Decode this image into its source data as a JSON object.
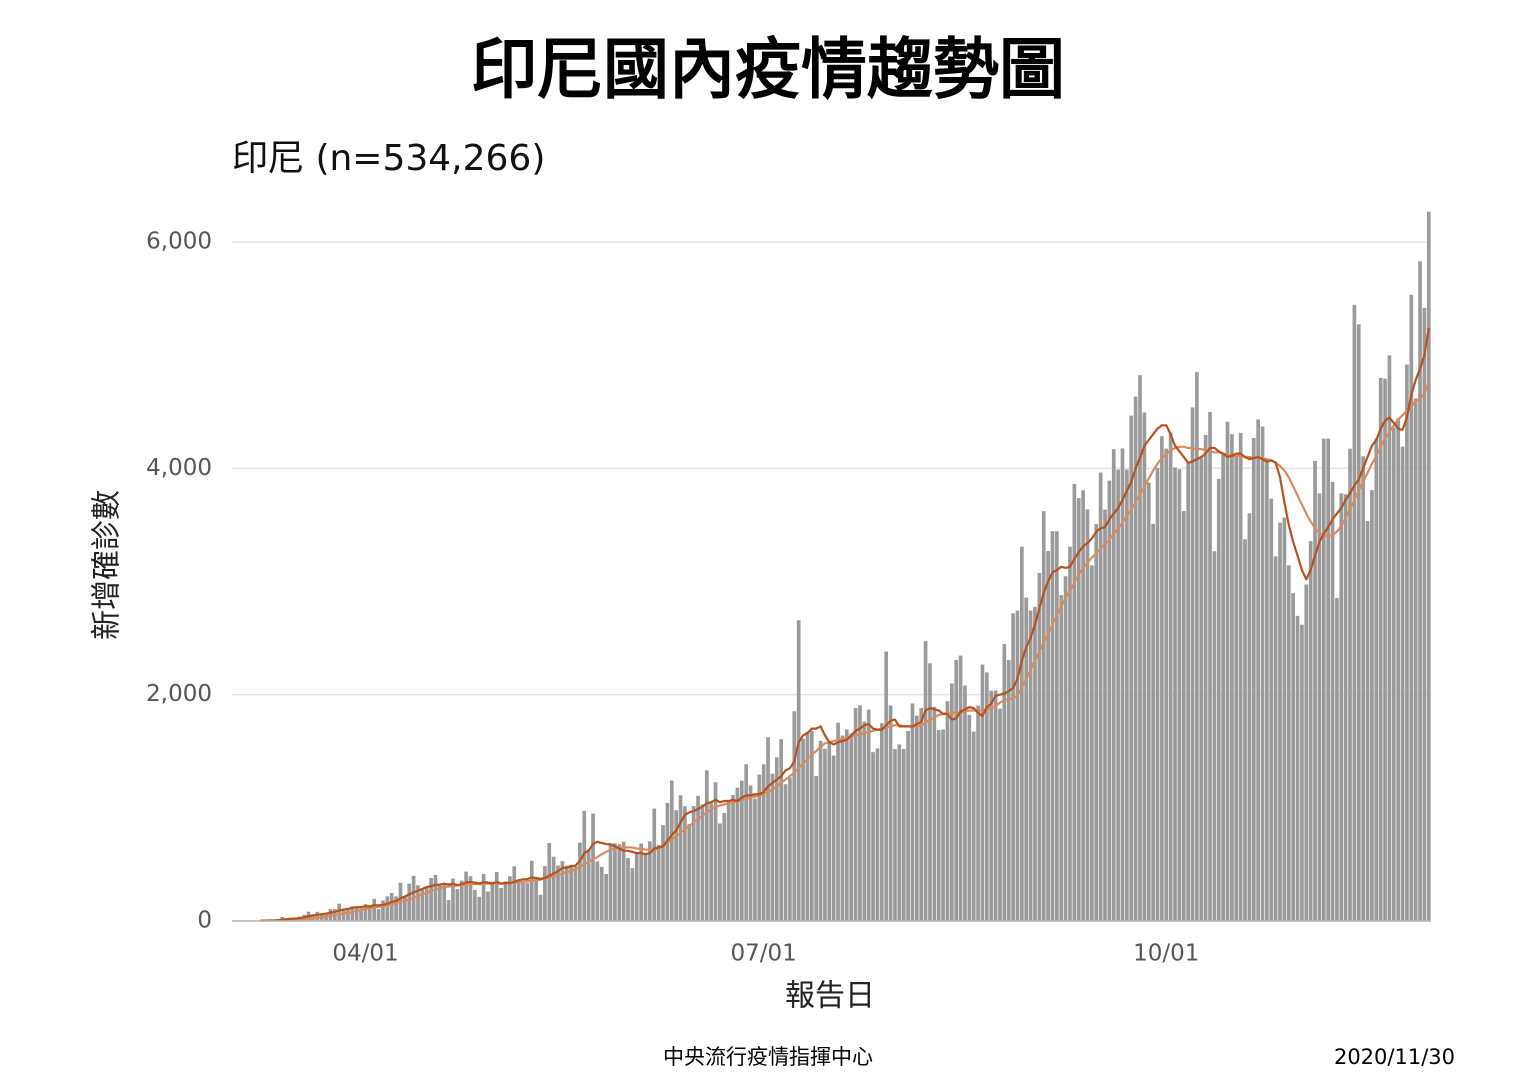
{
  "chart_data": {
    "type": "bar",
    "title": "印尼國內疫情趨勢圖",
    "subtitle": "印尼 (n=534,266)",
    "y_label": "新增確診數",
    "x_label": "報告日",
    "footer": "中央流行疫情指揮中心",
    "date": "2020/11/30",
    "ylim": [
      0,
      6300
    ],
    "yticks": [
      0,
      {
        "value": 2000,
        "label": "2,000"
      },
      {
        "value": 4000,
        "label": "4,000"
      },
      {
        "value": 6000,
        "label": "6,000"
      }
    ],
    "grid": true,
    "xticks": [
      "04/01",
      "07/01",
      "10/01"
    ],
    "categories": [
      "03/02",
      "03/03",
      "03/04",
      "03/05",
      "03/06",
      "03/07",
      "03/08",
      "03/09",
      "03/10",
      "03/11",
      "03/12",
      "03/13",
      "03/14",
      "03/15",
      "03/16",
      "03/17",
      "03/18",
      "03/19",
      "03/20",
      "03/21",
      "03/22",
      "03/23",
      "03/24",
      "03/25",
      "03/26",
      "03/27",
      "03/28",
      "03/29",
      "03/30",
      "03/31",
      "04/01",
      "04/02",
      "04/03",
      "04/04",
      "04/05",
      "04/06",
      "04/07",
      "04/08",
      "04/09",
      "04/10",
      "04/11",
      "04/12",
      "04/13",
      "04/14",
      "04/15",
      "04/16",
      "04/17",
      "04/18",
      "04/19",
      "04/20",
      "04/21",
      "04/22",
      "04/23",
      "04/24",
      "04/25",
      "04/26",
      "04/27",
      "04/28",
      "04/29",
      "04/30",
      "05/01",
      "05/02",
      "05/03",
      "05/04",
      "05/05",
      "05/06",
      "05/07",
      "05/08",
      "05/09",
      "05/10",
      "05/11",
      "05/12",
      "05/13",
      "05/14",
      "05/15",
      "05/16",
      "05/17",
      "05/18",
      "05/19",
      "05/20",
      "05/21",
      "05/22",
      "05/23",
      "05/24",
      "05/25",
      "05/26",
      "05/27",
      "05/28",
      "05/29",
      "05/30",
      "05/31",
      "06/01",
      "06/02",
      "06/03",
      "06/04",
      "06/05",
      "06/06",
      "06/07",
      "06/08",
      "06/09",
      "06/10",
      "06/11",
      "06/12",
      "06/13",
      "06/14",
      "06/15",
      "06/16",
      "06/17",
      "06/18",
      "06/19",
      "06/20",
      "06/21",
      "06/22",
      "06/23",
      "06/24",
      "06/25",
      "06/26",
      "06/27",
      "06/28",
      "06/29",
      "06/30",
      "07/01",
      "07/02",
      "07/03",
      "07/04",
      "07/05",
      "07/06",
      "07/07",
      "07/08",
      "07/09",
      "07/10",
      "07/11",
      "07/12",
      "07/13",
      "07/14",
      "07/15",
      "07/16",
      "07/17",
      "07/18",
      "07/19",
      "07/20",
      "07/21",
      "07/22",
      "07/23",
      "07/24",
      "07/25",
      "07/26",
      "07/27",
      "07/28",
      "07/29",
      "07/30",
      "07/31",
      "08/01",
      "08/02",
      "08/03",
      "08/04",
      "08/05",
      "08/06",
      "08/07",
      "08/08",
      "08/09",
      "08/10",
      "08/11",
      "08/12",
      "08/13",
      "08/14",
      "08/15",
      "08/16",
      "08/17",
      "08/18",
      "08/19",
      "08/20",
      "08/21",
      "08/22",
      "08/23",
      "08/24",
      "08/25",
      "08/26",
      "08/27",
      "08/28",
      "08/29",
      "08/30",
      "08/31",
      "09/01",
      "09/02",
      "09/03",
      "09/04",
      "09/05",
      "09/06",
      "09/07",
      "09/08",
      "09/09",
      "09/10",
      "09/11",
      "09/12",
      "09/13",
      "09/14",
      "09/15",
      "09/16",
      "09/17",
      "09/18",
      "09/19",
      "09/20",
      "09/21",
      "09/22",
      "09/23",
      "09/24",
      "09/25",
      "09/26",
      "09/27",
      "09/28",
      "09/29",
      "09/30",
      "10/01",
      "10/02",
      "10/03",
      "10/04",
      "10/05",
      "10/06",
      "10/07",
      "10/08",
      "10/09",
      "10/10",
      "10/11",
      "10/12",
      "10/13",
      "10/14",
      "10/15",
      "10/16",
      "10/17",
      "10/18",
      "10/19",
      "10/20",
      "10/21",
      "10/22",
      "10/23",
      "10/24",
      "10/25",
      "10/26",
      "10/27",
      "10/28",
      "10/29",
      "10/30",
      "10/31",
      "11/01",
      "11/02",
      "11/03",
      "11/04",
      "11/05",
      "11/06",
      "11/07",
      "11/08",
      "11/09",
      "11/10",
      "11/11",
      "11/12",
      "11/13",
      "11/14",
      "11/15",
      "11/16",
      "11/17",
      "11/18",
      "11/19",
      "11/20",
      "11/21",
      "11/22",
      "11/23",
      "11/24",
      "11/25",
      "11/26",
      "11/27",
      "11/28",
      "11/29",
      "11/30"
    ],
    "series": [
      {
        "type": "bar",
        "color": "#9a9a9a",
        "values": [
          2,
          0,
          0,
          0,
          2,
          0,
          2,
          13,
          8,
          7,
          0,
          35,
          27,
          21,
          17,
          38,
          55,
          82,
          60,
          81,
          64,
          65,
          106,
          105,
          153,
          109,
          103,
          130,
          129,
          114,
          149,
          113,
          196,
          106,
          181,
          218,
          247,
          218,
          337,
          219,
          330,
          399,
          316,
          282,
          297,
          380,
          407,
          325,
          327,
          185,
          375,
          283,
          357,
          436,
          396,
          275,
          214,
          415,
          260,
          347,
          433,
          292,
          349,
          395,
          484,
          367,
          338,
          336,
          533,
          387,
          233,
          484,
          689,
          568,
          490,
          529,
          489,
          496,
          486,
          693,
          973,
          634,
          949,
          526,
          479,
          415,
          686,
          687,
          678,
          700,
          557,
          467,
          609,
          684,
          585,
          703,
          993,
          672,
          847,
          1043,
          1241,
          979,
          1111,
          1014,
          857,
          1017,
          1106,
          1031,
          1331,
          1041,
          1226,
          862,
          954,
          1051,
          1113,
          1178,
          1240,
          1385,
          1198,
          1082,
          1293,
          1385,
          1624,
          1301,
          1447,
          1607,
          1209,
          1268,
          1853,
          2657,
          1611,
          1671,
          1681,
          1282,
          1591,
          1522,
          1574,
          1462,
          1752,
          1639,
          1693,
          1655,
          1882,
          1906,
          1761,
          1868,
          1492,
          1525,
          1748,
          2381,
          1904,
          1519,
          1560,
          1519,
          1679,
          1922,
          1815,
          1882,
          2473,
          2277,
          1893,
          1687,
          1693,
          1942,
          2098,
          2307,
          2345,
          2081,
          1821,
          1673,
          1902,
          2266,
          2197,
          2035,
          2037,
          1877,
          2447,
          2306,
          2719,
          2743,
          3308,
          2858,
          2743,
          2775,
          3075,
          3622,
          3269,
          3444,
          3444,
          2880,
          3046,
          3307,
          3861,
          3737,
          3806,
          3636,
          3141,
          3507,
          3963,
          3635,
          3891,
          4168,
          3989,
          4176,
          3989,
          4465,
          4634,
          4823,
          4494,
          3874,
          3509,
          4002,
          4284,
          4174,
          4317,
          4007,
          3992,
          3622,
          4056,
          4538,
          4850,
          4094,
          4294,
          4497,
          3267,
          3906,
          4127,
          4411,
          4301,
          4105,
          4313,
          3373,
          3602,
          4267,
          4432,
          4369,
          4070,
          3732,
          3222,
          3520,
          3565,
          3143,
          2897,
          2696,
          2618,
          2973,
          3356,
          4065,
          3778,
          4262,
          4262,
          3880,
          2853,
          3779,
          3770,
          4173,
          5444,
          5272,
          4106,
          3535,
          3807,
          4265,
          4798,
          4792,
          4998,
          4360,
          4442,
          4192,
          4917,
          5534,
          4617,
          5828,
          5418,
          6267
        ]
      },
      {
        "type": "line",
        "color": "#d98a5f",
        "values": [
          null,
          null,
          null,
          null,
          null,
          null,
          null,
          null,
          null,
          null,
          null,
          null,
          null,
          10,
          12,
          14,
          17,
          20,
          24,
          28,
          33,
          38,
          44,
          52,
          60,
          66,
          73,
          80,
          88,
          97,
          105,
          112,
          120,
          125,
          130,
          138,
          148,
          158,
          170,
          180,
          192,
          205,
          220,
          235,
          250,
          265,
          278,
          290,
          300,
          305,
          310,
          315,
          318,
          322,
          326,
          326,
          326,
          328,
          330,
          330,
          332,
          330,
          330,
          332,
          335,
          340,
          345,
          350,
          355,
          360,
          365,
          375,
          385,
          395,
          405,
          420,
          430,
          445,
          455,
          480,
          500,
          520,
          545,
          565,
          590,
          610,
          630,
          640,
          650,
          650,
          650,
          650,
          640,
          640,
          630,
          630,
          630,
          640,
          660,
          690,
          720,
          750,
          780,
          810,
          840,
          870,
          900,
          930,
          960,
          990,
          1010,
          1020,
          1030,
          1040,
          1050,
          1060,
          1070,
          1080,
          1090,
          1100,
          1110,
          1120,
          1140,
          1160,
          1190,
          1220,
          1250,
          1280,
          1310,
          1350,
          1390,
          1430,
          1470,
          1500,
          1540,
          1570,
          1580,
          1590,
          1600,
          1610,
          1620,
          1630,
          1640,
          1650,
          1660,
          1670,
          1680,
          1690,
          1700,
          1710,
          1720,
          1730,
          1730,
          1720,
          1720,
          1720,
          1720,
          1730,
          1750,
          1780,
          1800,
          1820,
          1830,
          1840,
          1840,
          1840,
          1840,
          1850,
          1860,
          1860,
          1860,
          1860,
          1870,
          1880,
          1900,
          1930,
          1950,
          1960,
          1970,
          1990,
          2060,
          2140,
          2220,
          2300,
          2380,
          2460,
          2540,
          2620,
          2700,
          2780,
          2850,
          2920,
          2990,
          3060,
          3120,
          3170,
          3210,
          3250,
          3290,
          3330,
          3370,
          3420,
          3470,
          3520,
          3580,
          3640,
          3700,
          3770,
          3840,
          3910,
          3980,
          4040,
          4090,
          4130,
          4160,
          4180,
          4190,
          4190,
          4180,
          4180,
          4170,
          4170,
          4160,
          4150,
          4140,
          4140,
          4130,
          4120,
          4110,
          4110,
          4110,
          4100,
          4100,
          4090,
          4090,
          4090,
          4080,
          4070,
          4050,
          4020,
          3980,
          3920,
          3840,
          3760,
          3680,
          3600,
          3530,
          3470,
          3430,
          3410,
          3400,
          3410,
          3440,
          3490,
          3560,
          3640,
          3720,
          3800,
          3880,
          3960,
          4040,
          4110,
          4190,
          4260,
          4320,
          4380,
          4430,
          4470,
          4510,
          4550,
          4590,
          4620,
          4660,
          4760
        ]
      },
      {
        "type": "line",
        "color": "#b4531f",
        "values": [
          null,
          null,
          null,
          null,
          null,
          null,
          3,
          4,
          5,
          5,
          8,
          12,
          16,
          20,
          21,
          26,
          33,
          42,
          49,
          55,
          60,
          66,
          73,
          81,
          93,
          101,
          107,
          117,
          122,
          123,
          130,
          129,
          141,
          138,
          143,
          153,
          168,
          177,
          200,
          216,
          235,
          252,
          268,
          284,
          300,
          308,
          318,
          322,
          330,
          322,
          330,
          316,
          325,
          340,
          345,
          339,
          332,
          343,
          340,
          330,
          345,
          330,
          338,
          335,
          345,
          360,
          368,
          370,
          385,
          380,
          372,
          380,
          400,
          420,
          440,
          470,
          470,
          485,
          490,
          530,
          600,
          620,
          680,
          700,
          690,
          680,
          677,
          660,
          640,
          620,
          620,
          610,
          600,
          600,
          590,
          600,
          640,
          650,
          660,
          710,
          760,
          800,
          870,
          940,
          960,
          970,
          990,
          1010,
          1040,
          1050,
          1070,
          1050,
          1060,
          1060,
          1070,
          1060,
          1090,
          1110,
          1110,
          1120,
          1120,
          1140,
          1190,
          1220,
          1250,
          1280,
          1330,
          1350,
          1410,
          1580,
          1640,
          1660,
          1700,
          1700,
          1720,
          1640,
          1580,
          1560,
          1580,
          1590,
          1600,
          1640,
          1680,
          1700,
          1730,
          1740,
          1700,
          1690,
          1690,
          1730,
          1770,
          1780,
          1720,
          1720,
          1720,
          1720,
          1740,
          1760,
          1860,
          1880,
          1870,
          1860,
          1830,
          1830,
          1780,
          1790,
          1850,
          1870,
          1890,
          1880,
          1840,
          1810,
          1890,
          1920,
          1990,
          2000,
          2010,
          2030,
          2060,
          2140,
          2300,
          2420,
          2500,
          2620,
          2760,
          2900,
          3000,
          3080,
          3100,
          3130,
          3120,
          3130,
          3200,
          3260,
          3310,
          3340,
          3380,
          3440,
          3470,
          3480,
          3550,
          3600,
          3650,
          3720,
          3800,
          3880,
          4000,
          4090,
          4200,
          4250,
          4300,
          4350,
          4380,
          4380,
          4300,
          4200,
          4150,
          4100,
          4050,
          4060,
          4080,
          4100,
          4130,
          4180,
          4180,
          4150,
          4130,
          4100,
          4110,
          4130,
          4130,
          4100,
          4080,
          4090,
          4100,
          4080,
          4060,
          4070,
          4050,
          3920,
          3700,
          3500,
          3350,
          3230,
          3100,
          3020,
          3100,
          3230,
          3350,
          3420,
          3480,
          3550,
          3600,
          3650,
          3720,
          3780,
          3850,
          3900,
          4000,
          4100,
          4200,
          4250,
          4350,
          4420,
          4450,
          4400,
          4350,
          4340,
          4450,
          4650,
          4780,
          4880,
          5000,
          5240
        ]
      }
    ]
  }
}
